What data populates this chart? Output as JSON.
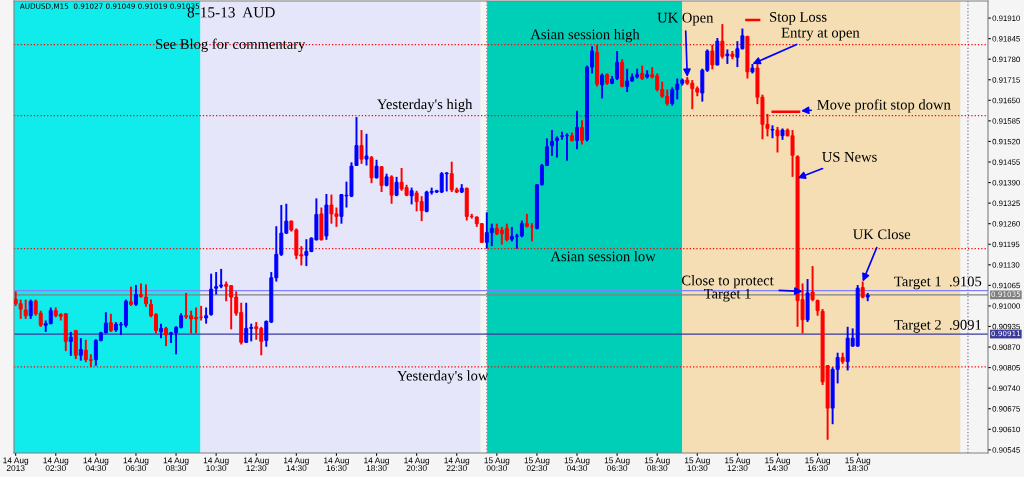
{
  "chart_data": {
    "type": "candlestick",
    "title": "8-15-13  AUD",
    "subtitle": "See Blog for commentary",
    "x": [
      "2013-08-14T00:30",
      "2013-08-14T00:45",
      "2013-08-14T01:00",
      "2013-08-14T01:15",
      "2013-08-14T01:30",
      "2013-08-14T01:45",
      "2013-08-14T02:00",
      "2013-08-14T02:15",
      "2013-08-14T02:30",
      "2013-08-14T02:45",
      "2013-08-14T03:00",
      "2013-08-14T03:15",
      "2013-08-14T03:30",
      "2013-08-14T03:45",
      "2013-08-14T04:00",
      "2013-08-14T04:15",
      "2013-08-14T04:30",
      "2013-08-14T04:45",
      "2013-08-14T05:00",
      "2013-08-14T05:15",
      "2013-08-14T05:30",
      "2013-08-14T05:45",
      "2013-08-14T06:00",
      "2013-08-14T06:15",
      "2013-08-14T06:30",
      "2013-08-14T06:45",
      "2013-08-14T07:00",
      "2013-08-14T07:15",
      "2013-08-14T07:30",
      "2013-08-14T07:45",
      "2013-08-14T08:00",
      "2013-08-14T08:15",
      "2013-08-14T08:30",
      "2013-08-14T08:45",
      "2013-08-14T09:00",
      "2013-08-14T09:15",
      "2013-08-14T09:30",
      "2013-08-14T09:45",
      "2013-08-14T10:00",
      "2013-08-14T10:15",
      "2013-08-14T10:30",
      "2013-08-14T10:45",
      "2013-08-14T11:00",
      "2013-08-14T11:15",
      "2013-08-14T11:30",
      "2013-08-14T11:45",
      "2013-08-14T12:00",
      "2013-08-14T12:15",
      "2013-08-14T12:30",
      "2013-08-14T12:45",
      "2013-08-14T13:00",
      "2013-08-14T13:15",
      "2013-08-14T13:30",
      "2013-08-14T13:45",
      "2013-08-14T14:00",
      "2013-08-14T14:15",
      "2013-08-14T14:30",
      "2013-08-14T14:45",
      "2013-08-14T15:00",
      "2013-08-14T15:15",
      "2013-08-14T15:30",
      "2013-08-14T15:45",
      "2013-08-14T16:00",
      "2013-08-14T16:15",
      "2013-08-14T16:30",
      "2013-08-14T16:45",
      "2013-08-14T17:00",
      "2013-08-14T17:15",
      "2013-08-14T17:30",
      "2013-08-14T17:45",
      "2013-08-14T18:00",
      "2013-08-14T18:15",
      "2013-08-14T18:30",
      "2013-08-14T18:45",
      "2013-08-14T19:00",
      "2013-08-14T19:15",
      "2013-08-14T19:30",
      "2013-08-14T19:45",
      "2013-08-14T20:00",
      "2013-08-14T20:15",
      "2013-08-14T20:30",
      "2013-08-14T20:45",
      "2013-08-14T21:00",
      "2013-08-14T21:15",
      "2013-08-14T21:30",
      "2013-08-14T21:45",
      "2013-08-14T22:00",
      "2013-08-14T22:15",
      "2013-08-14T22:30",
      "2013-08-14T22:45",
      "2013-08-14T23:00",
      "2013-08-14T23:15",
      "2013-08-14T23:30",
      "2013-08-14T23:45",
      "2013-08-15T00:00",
      "2013-08-15T00:15",
      "2013-08-15T00:30",
      "2013-08-15T00:45",
      "2013-08-15T01:00",
      "2013-08-15T01:15",
      "2013-08-15T01:30",
      "2013-08-15T01:45",
      "2013-08-15T02:00",
      "2013-08-15T02:15",
      "2013-08-15T02:30",
      "2013-08-15T02:45",
      "2013-08-15T03:00",
      "2013-08-15T03:15",
      "2013-08-15T03:30",
      "2013-08-15T03:45",
      "2013-08-15T04:00",
      "2013-08-15T04:15",
      "2013-08-15T04:30",
      "2013-08-15T04:45",
      "2013-08-15T05:00",
      "2013-08-15T05:15",
      "2013-08-15T05:30",
      "2013-08-15T05:45",
      "2013-08-15T06:00",
      "2013-08-15T06:15",
      "2013-08-15T06:30",
      "2013-08-15T06:45",
      "2013-08-15T07:00",
      "2013-08-15T07:15",
      "2013-08-15T07:30",
      "2013-08-15T07:45",
      "2013-08-15T08:00",
      "2013-08-15T08:15",
      "2013-08-15T08:30",
      "2013-08-15T08:45",
      "2013-08-15T09:00",
      "2013-08-15T09:15",
      "2013-08-15T09:30",
      "2013-08-15T09:45",
      "2013-08-15T10:00",
      "2013-08-15T10:15",
      "2013-08-15T10:30",
      "2013-08-15T10:45",
      "2013-08-15T11:00",
      "2013-08-15T11:15",
      "2013-08-15T11:30",
      "2013-08-15T11:45",
      "2013-08-15T12:00",
      "2013-08-15T12:15",
      "2013-08-15T12:30",
      "2013-08-15T12:45",
      "2013-08-15T13:00",
      "2013-08-15T13:15",
      "2013-08-15T13:30",
      "2013-08-15T13:45",
      "2013-08-15T14:00",
      "2013-08-15T14:15",
      "2013-08-15T14:30",
      "2013-08-15T14:45",
      "2013-08-15T15:00",
      "2013-08-15T15:15",
      "2013-08-15T15:30",
      "2013-08-15T15:45",
      "2013-08-15T16:00",
      "2013-08-15T16:15",
      "2013-08-15T16:30",
      "2013-08-15T16:45",
      "2013-08-15T17:00",
      "2013-08-15T17:15",
      "2013-08-15T17:30",
      "2013-08-15T17:45",
      "2013-08-15T18:00",
      "2013-08-15T18:15",
      "2013-08-15T18:30",
      "2013-08-15T18:45",
      "2013-08-15T19:00"
    ],
    "ohlc": [
      [
        0.91021,
        0.91046,
        0.91,
        0.91007
      ],
      [
        0.91007,
        0.9102,
        0.90959,
        0.9099
      ],
      [
        0.90987,
        0.9102,
        0.90959,
        0.90969
      ],
      [
        0.90969,
        0.9102,
        0.90959,
        0.91015
      ],
      [
        0.91015,
        0.9102,
        0.90969,
        0.90975
      ],
      [
        0.90977,
        0.90985,
        0.90934,
        0.90939
      ],
      [
        0.90939,
        0.90954,
        0.90918,
        0.90944
      ],
      [
        0.90944,
        0.90995,
        0.90942,
        0.90985
      ],
      [
        0.90985,
        0.90995,
        0.90964,
        0.90969
      ],
      [
        0.90973,
        0.90977,
        0.90954,
        0.90967
      ],
      [
        0.90975,
        0.90977,
        0.90857,
        0.90888
      ],
      [
        0.90888,
        0.90918,
        0.90842,
        0.90901
      ],
      [
        0.90922,
        0.90924,
        0.90832,
        0.90844
      ],
      [
        0.90844,
        0.90898,
        0.90827,
        0.90862
      ],
      [
        0.9086,
        0.90893,
        0.90822,
        0.9083
      ],
      [
        0.9083,
        0.90847,
        0.90806,
        0.90828
      ],
      [
        0.9083,
        0.90895,
        0.90811,
        0.90891
      ],
      [
        0.90891,
        0.90918,
        0.90888,
        0.90915
      ],
      [
        0.90915,
        0.9098,
        0.90913,
        0.90946
      ],
      [
        0.90947,
        0.90975,
        0.90918,
        0.90922
      ],
      [
        0.90924,
        0.90949,
        0.90918,
        0.90942
      ],
      [
        0.9094,
        0.90949,
        0.90908,
        0.90942
      ],
      [
        0.90939,
        0.9102,
        0.90932,
        0.91015
      ],
      [
        0.91013,
        0.91061,
        0.91,
        0.91005
      ],
      [
        0.91005,
        0.91066,
        0.91,
        0.91036
      ],
      [
        0.91036,
        0.91071,
        0.91026,
        0.9103
      ],
      [
        0.91028,
        0.91068,
        0.90997,
        0.91007
      ],
      [
        0.91005,
        0.9102,
        0.90964,
        0.90969
      ],
      [
        0.90973,
        0.90977,
        0.90913,
        0.90922
      ],
      [
        0.90918,
        0.90944,
        0.90898,
        0.90929
      ],
      [
        0.90929,
        0.90934,
        0.90873,
        0.90908
      ],
      [
        0.90911,
        0.90918,
        0.90883,
        0.90915
      ],
      [
        0.90915,
        0.90936,
        0.90847,
        0.90932
      ],
      [
        0.90932,
        0.90977,
        0.90929,
        0.90969
      ],
      [
        0.90969,
        0.91041,
        0.90959,
        0.90966
      ],
      [
        0.90969,
        0.90985,
        0.90913,
        0.90959
      ],
      [
        0.90964,
        0.90995,
        0.90913,
        0.90959
      ],
      [
        0.90964,
        0.91,
        0.90954,
        0.90964
      ],
      [
        0.90962,
        0.90995,
        0.90944,
        0.90969
      ],
      [
        0.90973,
        0.91102,
        0.90969,
        0.91053
      ],
      [
        0.91056,
        0.91107,
        0.91036,
        0.91061
      ],
      [
        0.91062,
        0.91117,
        0.91056,
        0.91066
      ],
      [
        0.91068,
        0.91077,
        0.91015,
        0.91062
      ],
      [
        0.91064,
        0.91066,
        0.90926,
        0.91028
      ],
      [
        0.91028,
        0.91046,
        0.90969,
        0.90977
      ],
      [
        0.90979,
        0.9101,
        0.90878,
        0.90885
      ],
      [
        0.90885,
        0.9101,
        0.90883,
        0.90929
      ],
      [
        0.90929,
        0.90944,
        0.90888,
        0.90932
      ],
      [
        0.90934,
        0.90949,
        0.90893,
        0.90928
      ],
      [
        0.90929,
        0.90934,
        0.90844,
        0.90888
      ],
      [
        0.90891,
        0.90954,
        0.90871,
        0.90951
      ],
      [
        0.90949,
        0.91107,
        0.90946,
        0.91089
      ],
      [
        0.91089,
        0.91252,
        0.91077,
        0.91163
      ],
      [
        0.91163,
        0.91319,
        0.91158,
        0.9123
      ],
      [
        0.9123,
        0.91323,
        0.91228,
        0.91268
      ],
      [
        0.91268,
        0.9127,
        0.91235,
        0.9124
      ],
      [
        0.9124,
        0.91245,
        0.91148,
        0.9116
      ],
      [
        0.91162,
        0.91189,
        0.91128,
        0.91158
      ],
      [
        0.9116,
        0.91211,
        0.91126,
        0.91172
      ],
      [
        0.91172,
        0.91217,
        0.9117,
        0.91214
      ],
      [
        0.91209,
        0.9134,
        0.91207,
        0.91289
      ],
      [
        0.91291,
        0.91311,
        0.91207,
        0.91209
      ],
      [
        0.91221,
        0.91354,
        0.91209,
        0.91319
      ],
      [
        0.91319,
        0.91352,
        0.9126,
        0.91291
      ],
      [
        0.91291,
        0.91311,
        0.9125,
        0.91283
      ],
      [
        0.91283,
        0.91354,
        0.9126,
        0.91352
      ],
      [
        0.91348,
        0.91393,
        0.91311,
        0.9135
      ],
      [
        0.91347,
        0.91454,
        0.91344,
        0.91442
      ],
      [
        0.91444,
        0.91597,
        0.91444,
        0.91507
      ],
      [
        0.91507,
        0.91556,
        0.91449,
        0.91464
      ],
      [
        0.91464,
        0.91544,
        0.91444,
        0.91474
      ],
      [
        0.91469,
        0.91474,
        0.91388,
        0.91405
      ],
      [
        0.91405,
        0.91462,
        0.91403,
        0.91442
      ],
      [
        0.9144,
        0.91442,
        0.9136,
        0.91381
      ],
      [
        0.91381,
        0.91418,
        0.91378,
        0.91408
      ],
      [
        0.91408,
        0.91413,
        0.91323,
        0.9135
      ],
      [
        0.9135,
        0.91408,
        0.91347,
        0.91391
      ],
      [
        0.91391,
        0.91436,
        0.91364,
        0.9137
      ],
      [
        0.91374,
        0.91383,
        0.91347,
        0.9135
      ],
      [
        0.91348,
        0.91374,
        0.91321,
        0.91364
      ],
      [
        0.91357,
        0.91364,
        0.91299,
        0.9133
      ],
      [
        0.9133,
        0.91347,
        0.91268,
        0.91301
      ],
      [
        0.91299,
        0.91364,
        0.91296,
        0.9136
      ],
      [
        0.91359,
        0.91374,
        0.91352,
        0.91362
      ],
      [
        0.9136,
        0.91367,
        0.91357,
        0.91364
      ],
      [
        0.9136,
        0.91423,
        0.91357,
        0.91418
      ],
      [
        0.91418,
        0.91423,
        0.91362,
        0.9142
      ],
      [
        0.91418,
        0.91456,
        0.9136,
        0.91367
      ],
      [
        0.91367,
        0.91374,
        0.91357,
        0.9136
      ],
      [
        0.9136,
        0.91385,
        0.91357,
        0.91372
      ],
      [
        0.91372,
        0.91374,
        0.9127,
        0.91283
      ],
      [
        0.91283,
        0.91291,
        0.91276,
        0.91283
      ],
      [
        0.91281,
        0.91283,
        0.9125,
        0.9126
      ],
      [
        0.9126,
        0.91262,
        0.91199,
        0.91201
      ],
      [
        0.91201,
        0.91296,
        0.91181,
        0.91232
      ],
      [
        0.91232,
        0.9126,
        0.91189,
        0.91245
      ],
      [
        0.91245,
        0.9126,
        0.91224,
        0.91228
      ],
      [
        0.9124,
        0.9125,
        0.91194,
        0.91228
      ],
      [
        0.91245,
        0.9126,
        0.91204,
        0.91209
      ],
      [
        0.91211,
        0.9125,
        0.91204,
        0.91219
      ],
      [
        0.9122,
        0.91228,
        0.91181,
        0.91221
      ],
      [
        0.91221,
        0.9127,
        0.91217,
        0.9126
      ],
      [
        0.9126,
        0.91291,
        0.91248,
        0.91252
      ],
      [
        0.9125,
        0.91262,
        0.91204,
        0.9125
      ],
      [
        0.91245,
        0.91385,
        0.91242,
        0.91383
      ],
      [
        0.91383,
        0.91449,
        0.91381,
        0.91444
      ],
      [
        0.91444,
        0.9153,
        0.91442,
        0.91503
      ],
      [
        0.91507,
        0.91556,
        0.91474,
        0.9152
      ],
      [
        0.91523,
        0.91536,
        0.91469,
        0.9153
      ],
      [
        0.91536,
        0.91551,
        0.91525,
        0.91538
      ],
      [
        0.91538,
        0.91546,
        0.91459,
        0.9154
      ],
      [
        0.91538,
        0.91548,
        0.9152,
        0.91523
      ],
      [
        0.91523,
        0.91617,
        0.91495,
        0.91564
      ],
      [
        0.91564,
        0.91587,
        0.9151,
        0.91523
      ],
      [
        0.91525,
        0.9176,
        0.9152,
        0.91755
      ],
      [
        0.91755,
        0.91821,
        0.91735,
        0.91806
      ],
      [
        0.91801,
        0.91826,
        0.91694,
        0.91701
      ],
      [
        0.91699,
        0.91735,
        0.91656,
        0.91729
      ],
      [
        0.91731,
        0.91735,
        0.91699,
        0.91704
      ],
      [
        0.91704,
        0.91727,
        0.91701,
        0.91717
      ],
      [
        0.91719,
        0.91806,
        0.91714,
        0.9177
      ],
      [
        0.9177,
        0.9178,
        0.91691,
        0.91694
      ],
      [
        0.91694,
        0.9175,
        0.91676,
        0.91711
      ],
      [
        0.91711,
        0.91735,
        0.91709,
        0.91724
      ],
      [
        0.91724,
        0.9175,
        0.91719,
        0.91731
      ],
      [
        0.91735,
        0.9176,
        0.91714,
        0.91719
      ],
      [
        0.91724,
        0.91745,
        0.91719,
        0.91731
      ],
      [
        0.91731,
        0.91755,
        0.91719,
        0.91724
      ],
      [
        0.91727,
        0.91735,
        0.91678,
        0.91684
      ],
      [
        0.91684,
        0.91709,
        0.91658,
        0.91663
      ],
      [
        0.91663,
        0.91684,
        0.91633,
        0.9164
      ],
      [
        0.9164,
        0.91691,
        0.91633,
        0.91684
      ],
      [
        0.91684,
        0.91719,
        0.91653,
        0.91701
      ],
      [
        0.91704,
        0.91719,
        0.91697,
        0.91714
      ],
      [
        0.91714,
        0.91724,
        0.91699,
        0.91704
      ],
      [
        0.91704,
        0.91714,
        0.91622,
        0.91687
      ],
      [
        0.91687,
        0.91694,
        0.91663,
        0.91676
      ],
      [
        0.91673,
        0.9175,
        0.91646,
        0.91745
      ],
      [
        0.91745,
        0.91811,
        0.9174,
        0.91806
      ],
      [
        0.91806,
        0.91826,
        0.91748,
        0.91762
      ],
      [
        0.91762,
        0.91847,
        0.9176,
        0.91837
      ],
      [
        0.91837,
        0.91891,
        0.91782,
        0.91789
      ],
      [
        0.91791,
        0.91811,
        0.91765,
        0.91796
      ],
      [
        0.91796,
        0.91806,
        0.9178,
        0.91789
      ],
      [
        0.91786,
        0.91837,
        0.91755,
        0.91813
      ],
      [
        0.91813,
        0.91877,
        0.91811,
        0.91854
      ],
      [
        0.91852,
        0.91854,
        0.91719,
        0.9174
      ],
      [
        0.9174,
        0.91765,
        0.91735,
        0.91752
      ],
      [
        0.91752,
        0.91765,
        0.91638,
        0.9166
      ],
      [
        0.9166,
        0.91668,
        0.91527,
        0.91574
      ],
      [
        0.91574,
        0.91607,
        0.91536,
        0.91561
      ],
      [
        0.91556,
        0.91571,
        0.9153,
        0.91558
      ],
      [
        0.91556,
        0.91566,
        0.91485,
        0.91538
      ],
      [
        0.91538,
        0.91561,
        0.91525,
        0.91556
      ],
      [
        0.91556,
        0.91561,
        0.91536,
        0.91538
      ],
      [
        0.91538,
        0.91556,
        0.91408,
        0.91476
      ],
      [
        0.91472,
        0.91476,
        0.90934,
        0.91017
      ],
      [
        0.9102,
        0.91071,
        0.90913,
        0.90956
      ],
      [
        0.90956,
        0.91085,
        0.90949,
        0.91041
      ],
      [
        0.91044,
        0.91126,
        0.91015,
        0.9102
      ],
      [
        0.91017,
        0.9102,
        0.90969,
        0.90985
      ],
      [
        0.90983,
        0.9099,
        0.9075,
        0.9076
      ],
      [
        0.90811,
        0.90813,
        0.90577,
        0.90677
      ],
      [
        0.90677,
        0.90806,
        0.90626,
        0.90799
      ],
      [
        0.90799,
        0.90852,
        0.90755,
        0.90837
      ],
      [
        0.90837,
        0.90852,
        0.90817,
        0.90824
      ],
      [
        0.90824,
        0.90934,
        0.90796,
        0.90898
      ],
      [
        0.90873,
        0.90929,
        0.90871,
        0.90898
      ],
      [
        0.90873,
        0.91066,
        0.90871,
        0.91056
      ],
      [
        0.91058,
        0.91077,
        0.91024,
        0.91028
      ],
      [
        0.91028,
        0.91041,
        0.91015,
        0.91034
      ]
    ],
    "colors": [
      "#ff0000",
      "#ff0000",
      "#ff0000",
      "#0000ff",
      "#ff0000",
      "#ff0000",
      "#0000ff",
      "#0000ff",
      "#ff0000",
      "#ff0000",
      "#ff0000",
      "#0000ff",
      "#ff0000",
      "#0000ff",
      "#ff0000",
      "#ff0000",
      "#0000ff",
      "#0000ff",
      "#0000ff",
      "#ff0000",
      "#0000ff",
      "#0000ff",
      "#0000ff",
      "#ff0000",
      "#0000ff",
      "#ff0000",
      "#ff0000",
      "#ff0000",
      "#ff0000",
      "#0000ff",
      "#ff0000",
      "#0000ff",
      "#0000ff",
      "#0000ff",
      "#ff0000",
      "#ff0000",
      "#ff0000",
      "#ff0000",
      "#0000ff",
      "#0000ff",
      "#0000ff",
      "#0000ff",
      "#ff0000",
      "#ff0000",
      "#ff0000",
      "#ff0000",
      "#0000ff",
      "#0000ff",
      "#ff0000",
      "#ff0000",
      "#0000ff",
      "#0000ff",
      "#0000ff",
      "#0000ff",
      "#0000ff",
      "#ff0000",
      "#ff0000",
      "#ff0000",
      "#0000ff",
      "#0000ff",
      "#0000ff",
      "#ff0000",
      "#0000ff",
      "#ff0000",
      "#ff0000",
      "#0000ff",
      "#0000ff",
      "#0000ff",
      "#0000ff",
      "#ff0000",
      "#0000ff",
      "#ff0000",
      "#0000ff",
      "#ff0000",
      "#0000ff",
      "#ff0000",
      "#0000ff",
      "#ff0000",
      "#ff0000",
      "#0000ff",
      "#ff0000",
      "#ff0000",
      "#0000ff",
      "#0000ff",
      "#0000ff",
      "#0000ff",
      "#0000ff",
      "#ff0000",
      "#ff0000",
      "#0000ff",
      "#ff0000",
      "#ff0000",
      "#ff0000",
      "#ff0000",
      "#0000ff",
      "#0000ff",
      "#ff0000",
      "#ff0000",
      "#ff0000",
      "#0000ff",
      "#0000ff",
      "#0000ff",
      "#ff0000",
      "#ff0000",
      "#0000ff",
      "#0000ff",
      "#0000ff",
      "#0000ff",
      "#0000ff",
      "#0000ff",
      "#0000ff",
      "#ff0000",
      "#0000ff",
      "#ff0000",
      "#0000ff",
      "#0000ff",
      "#ff0000",
      "#0000ff",
      "#ff0000",
      "#0000ff",
      "#0000ff",
      "#ff0000",
      "#0000ff",
      "#0000ff",
      "#0000ff",
      "#ff0000",
      "#0000ff",
      "#ff0000",
      "#ff0000",
      "#ff0000",
      "#ff0000",
      "#0000ff",
      "#0000ff",
      "#0000ff",
      "#ff0000",
      "#ff0000",
      "#ff0000",
      "#0000ff",
      "#0000ff",
      "#ff0000",
      "#0000ff",
      "#ff0000",
      "#0000ff",
      "#ff0000",
      "#0000ff",
      "#0000ff",
      "#ff0000",
      "#0000ff",
      "#ff0000",
      "#ff0000",
      "#ff0000",
      "#0000ff",
      "#ff0000",
      "#0000ff",
      "#ff0000",
      "#ff0000",
      "#ff0000",
      "#ff0000",
      "#0000ff",
      "#ff0000",
      "#ff0000",
      "#ff0000",
      "#ff0000",
      "#0000ff",
      "#0000ff",
      "#ff0000",
      "#0000ff",
      "#0000ff",
      "#0000ff",
      "#ff0000",
      "#0000ff"
    ],
    "xlim": [
      "2013-08-14T00:25",
      "2013-08-16T01:00"
    ],
    "xticks": [
      {
        "value": "2013-08-14T00:30",
        "label": "14 Aug 2013"
      },
      {
        "value": "2013-08-14T02:30",
        "label": "14 Aug 02:30"
      },
      {
        "value": "2013-08-14T04:30",
        "label": "14 Aug 04:30"
      },
      {
        "value": "2013-08-14T06:30",
        "label": "14 Aug 06:30"
      },
      {
        "value": "2013-08-14T08:30",
        "label": "14 Aug 08:30"
      },
      {
        "value": "2013-08-14T10:30",
        "label": "14 Aug 10:30"
      },
      {
        "value": "2013-08-14T12:30",
        "label": "14 Aug 12:30"
      },
      {
        "value": "2013-08-14T14:30",
        "label": "14 Aug 14:30"
      },
      {
        "value": "2013-08-14T16:30",
        "label": "14 Aug 16:30"
      },
      {
        "value": "2013-08-14T18:30",
        "label": "14 Aug 18:30"
      },
      {
        "value": "2013-08-14T20:30",
        "label": "14 Aug 20:30"
      },
      {
        "value": "2013-08-14T22:30",
        "label": "14 Aug 22:30"
      },
      {
        "value": "2013-08-15T00:30",
        "label": "15 Aug 00:30"
      },
      {
        "value": "2013-08-15T02:30",
        "label": "15 Aug 02:30"
      },
      {
        "value": "2013-08-15T04:30",
        "label": "15 Aug 04:30"
      },
      {
        "value": "2013-08-15T06:30",
        "label": "15 Aug 06:30"
      },
      {
        "value": "2013-08-15T08:30",
        "label": "15 Aug 08:30"
      },
      {
        "value": "2013-08-15T10:30",
        "label": "15 Aug 10:30"
      },
      {
        "value": "2013-08-15T12:30",
        "label": "15 Aug 12:30"
      },
      {
        "value": "2013-08-15T14:30",
        "label": "15 Aug 14:30"
      },
      {
        "value": "2013-08-15T16:30",
        "label": "15 Aug 16:30"
      },
      {
        "value": "2013-08-15T18:30",
        "label": "15 Aug 18:30"
      }
    ],
    "ylim": [
      0.90535,
      0.91964
    ],
    "yticks": [
      {
        "value": 0.90545,
        "label": "0.90545"
      },
      {
        "value": 0.9061,
        "label": "0.90610"
      },
      {
        "value": 0.90675,
        "label": "0.90675"
      },
      {
        "value": 0.9074,
        "label": "0.90740"
      },
      {
        "value": 0.90805,
        "label": "0.90805"
      },
      {
        "value": 0.9087,
        "label": "0.90870"
      },
      {
        "value": 0.90935,
        "label": "0.90935"
      },
      {
        "value": 0.91,
        "label": "0.91000"
      },
      {
        "value": 0.91065,
        "label": "0.91065"
      },
      {
        "value": 0.9113,
        "label": "0.91130"
      },
      {
        "value": 0.91195,
        "label": "0.91195"
      },
      {
        "value": 0.9126,
        "label": "0.91260"
      },
      {
        "value": 0.91325,
        "label": "0.91325"
      },
      {
        "value": 0.9139,
        "label": "0.91390"
      },
      {
        "value": 0.91455,
        "label": "0.91455"
      },
      {
        "value": 0.9152,
        "label": "0.91520"
      },
      {
        "value": 0.91585,
        "label": "0.91585"
      },
      {
        "value": 0.9165,
        "label": "0.91650"
      },
      {
        "value": 0.91715,
        "label": "0.91715"
      },
      {
        "value": 0.9178,
        "label": "0.91780"
      },
      {
        "value": 0.91845,
        "label": "0.91845"
      },
      {
        "value": 0.9191,
        "label": "0.91910"
      }
    ],
    "bands": [
      {
        "axis": "x",
        "from": "2013-08-14T00:25",
        "to": "2013-08-14T09:43",
        "color": "#10ebeb"
      },
      {
        "axis": "x",
        "from": "2013-08-14T09:43",
        "to": "2013-08-14T23:41",
        "color": "#e6e6fa"
      },
      {
        "axis": "x",
        "from": "2013-08-15T00:01",
        "to": "2013-08-15T09:45",
        "color": "#00cfb8"
      },
      {
        "axis": "x",
        "from": "2013-08-15T09:45",
        "to": "2013-08-15T23:37",
        "color": "#f5deb3"
      }
    ],
    "ref_lines": [
      {
        "axis": "x",
        "value": "2013-08-15T00:00",
        "color": "#808080",
        "line_style": "dotted"
      },
      {
        "axis": "x",
        "value": "2013-08-16T00:00",
        "color": "#808080",
        "line_style": "dotted"
      },
      {
        "axis": "y",
        "value": 0.91602,
        "color": "#ff0000",
        "line_style": "dotted"
      },
      {
        "axis": "y",
        "value": 0.91826,
        "color": "#ff0000",
        "line_style": "dotted"
      },
      {
        "axis": "y",
        "value": 0.91181,
        "color": "#ff0000",
        "line_style": "dotted"
      },
      {
        "axis": "y",
        "value": 0.90807,
        "color": "#ff0000",
        "line_style": "dotted"
      },
      {
        "axis": "y",
        "value": 0.91048,
        "color": "#8080ff",
        "line_style": "solid"
      },
      {
        "axis": "y",
        "value": 0.91035,
        "color": "#808080",
        "line_style": "solid",
        "label": "0.91035"
      },
      {
        "axis": "y",
        "value": 0.90911,
        "color": "#3a3a9a",
        "line_style": "solid",
        "label": "0.90911"
      }
    ],
    "annotations": [
      "AUDUSD,M15  0.91027 0.91049 0.91019 0.91035",
      {
        "text": "Yesterday's high",
        "x": "2013-08-14T20:54",
        "y": 0.91602
      },
      {
        "text": "Asian session high",
        "x": "2013-08-15T04:54",
        "y": 0.91826
      },
      {
        "text": "Asian session low",
        "x": "2013-08-15T05:48",
        "y": 0.91181
      },
      {
        "text": "Yesterday's low",
        "x": "2013-08-14T21:48",
        "y": 0.90807
      },
      {
        "text": "UK Open",
        "x": "2013-08-15T10:00",
        "y": 0.91724
      },
      "Stop Loss",
      {
        "text": "Entry at open",
        "x": "2013-08-15T13:15",
        "y": 0.91765
      },
      "Move profit stop down",
      {
        "text": "US News",
        "x": "2013-08-15T15:30",
        "y": 0.91404
      },
      {
        "text": "UK Close",
        "x": "2013-08-15T18:45",
        "y": 0.91077
      },
      {
        "text": "Close to protect\nTarget 1",
        "x": "2013-08-15T15:45",
        "y": 0.91046
      },
      {
        "text": "Target 1  .9105",
        "x": "2013-08-15T22:30",
        "y": 0.91048
      },
      {
        "text": "Target 2  .9091",
        "x": "2013-08-15T22:30",
        "y": 0.90911
      }
    ]
  }
}
